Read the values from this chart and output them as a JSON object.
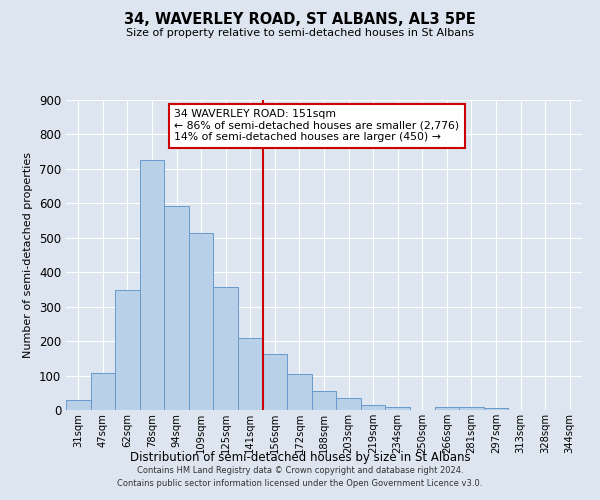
{
  "title": "34, WAVERLEY ROAD, ST ALBANS, AL3 5PE",
  "subtitle": "Size of property relative to semi-detached houses in St Albans",
  "xlabel": "Distribution of semi-detached houses by size in St Albans",
  "ylabel": "Number of semi-detached properties",
  "bar_labels": [
    "31sqm",
    "47sqm",
    "62sqm",
    "78sqm",
    "94sqm",
    "109sqm",
    "125sqm",
    "141sqm",
    "156sqm",
    "172sqm",
    "188sqm",
    "203sqm",
    "219sqm",
    "234sqm",
    "250sqm",
    "266sqm",
    "281sqm",
    "297sqm",
    "313sqm",
    "328sqm",
    "344sqm"
  ],
  "bar_values": [
    30,
    107,
    349,
    725,
    592,
    513,
    358,
    209,
    163,
    105,
    54,
    35,
    15,
    10,
    0,
    10,
    10,
    7,
    0,
    0,
    0
  ],
  "bar_color": "#b8d0e8",
  "bar_edgecolor": "#6699cc",
  "vline_x_index": 8,
  "vline_color": "#cc0000",
  "annotation_title": "34 WAVERLEY ROAD: 151sqm",
  "annotation_line1": "← 86% of semi-detached houses are smaller (2,776)",
  "annotation_line2": "14% of semi-detached houses are larger (450) →",
  "annotation_box_edgecolor": "#cc0000",
  "ylim": [
    0,
    900
  ],
  "yticks": [
    0,
    100,
    200,
    300,
    400,
    500,
    600,
    700,
    800,
    900
  ],
  "bg_color": "#dde6f0",
  "grid_color": "#ffffff",
  "footer_line1": "Contains HM Land Registry data © Crown copyright and database right 2024.",
  "footer_line2": "Contains public sector information licensed under the Open Government Licence v3.0."
}
